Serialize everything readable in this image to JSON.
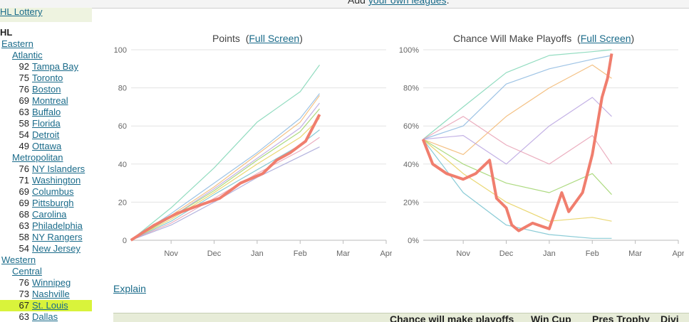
{
  "header": {
    "prefix": "Add",
    "link": "your own leagues",
    "suffix": "."
  },
  "sidebar": {
    "lottery": "HL Lottery",
    "league": "HL",
    "conferences": [
      {
        "name": "Eastern",
        "divisions": [
          {
            "name": "Atlantic",
            "teams": [
              {
                "pts": "92",
                "name": "Tampa Bay"
              },
              {
                "pts": "75",
                "name": "Toronto"
              },
              {
                "pts": "76",
                "name": "Boston"
              },
              {
                "pts": "69",
                "name": "Montreal"
              },
              {
                "pts": "63",
                "name": "Buffalo"
              },
              {
                "pts": "58",
                "name": "Florida"
              },
              {
                "pts": "54",
                "name": "Detroit"
              },
              {
                "pts": "49",
                "name": "Ottawa"
              }
            ]
          },
          {
            "name": "Metropolitan",
            "teams": [
              {
                "pts": "76",
                "name": "NY Islanders"
              },
              {
                "pts": "71",
                "name": "Washington"
              },
              {
                "pts": "69",
                "name": "Columbus"
              },
              {
                "pts": "69",
                "name": "Pittsburgh"
              },
              {
                "pts": "68",
                "name": "Carolina"
              },
              {
                "pts": "63",
                "name": "Philadelphia"
              },
              {
                "pts": "58",
                "name": "NY Rangers"
              },
              {
                "pts": "54",
                "name": "New Jersey"
              }
            ]
          }
        ]
      },
      {
        "name": "Western",
        "divisions": [
          {
            "name": "Central",
            "teams": [
              {
                "pts": "76",
                "name": "Winnipeg"
              },
              {
                "pts": "73",
                "name": "Nashville"
              },
              {
                "pts": "67",
                "name": "St. Louis"
              },
              {
                "pts": "63",
                "name": "Dallas"
              }
            ]
          }
        ]
      }
    ],
    "highlighted_team": "St. Louis"
  },
  "charts": {
    "points": {
      "title": "Points",
      "link": "Full Screen"
    },
    "playoffs": {
      "title": "Chance Will Make Playoffs",
      "link": "Full Screen"
    }
  },
  "explain": "Explain",
  "table_header": [
    "Chance will make playoffs",
    "Win Cup",
    "Pres Trophy",
    "Divi"
  ],
  "colors": {
    "highlight_line": "#f07e6e",
    "link": "#1a6b8a",
    "selected_row": "#d9f33b"
  },
  "chart_data": [
    {
      "type": "line",
      "title": "Points",
      "xlabel": "",
      "ylabel": "",
      "x_ticks": [
        "Nov",
        "Dec",
        "Jan",
        "Feb",
        "Mar",
        "Apr"
      ],
      "y_ticks": [
        "0",
        "20",
        "40",
        "60",
        "80",
        "100"
      ],
      "ylim": [
        0,
        100
      ],
      "grid": true,
      "series": [
        {
          "highlight": true,
          "x": [
            "Oct 3",
            "Oct 20",
            "Nov 5",
            "Nov 20",
            "Dec 5",
            "Dec 20",
            "Jan 5",
            "Jan 15",
            "Jan 25",
            "Feb 5",
            "Feb 15"
          ],
          "values": [
            0,
            8,
            14,
            18,
            22,
            30,
            35,
            42,
            46,
            52,
            66
          ]
        },
        {
          "x": [
            "Oct 3",
            "Nov 1",
            "Dec 1",
            "Jan 1",
            "Feb 1",
            "Feb 15"
          ],
          "values": [
            0,
            17,
            38,
            62,
            78,
            92
          ]
        },
        {
          "x": [
            "Oct 3",
            "Nov 1",
            "Dec 1",
            "Jan 1",
            "Feb 1",
            "Feb 15"
          ],
          "values": [
            0,
            14,
            30,
            46,
            64,
            77
          ]
        },
        {
          "x": [
            "Oct 3",
            "Nov 1",
            "Dec 1",
            "Jan 1",
            "Feb 1",
            "Feb 15"
          ],
          "values": [
            0,
            13,
            28,
            45,
            62,
            76
          ]
        },
        {
          "x": [
            "Oct 3",
            "Nov 1",
            "Dec 1",
            "Jan 1",
            "Feb 1",
            "Feb 15"
          ],
          "values": [
            0,
            12,
            27,
            43,
            59,
            72
          ]
        },
        {
          "x": [
            "Oct 3",
            "Nov 1",
            "Dec 1",
            "Jan 1",
            "Feb 1",
            "Feb 15"
          ],
          "values": [
            0,
            12,
            26,
            42,
            57,
            69
          ]
        },
        {
          "x": [
            "Oct 3",
            "Nov 1",
            "Dec 1",
            "Jan 1",
            "Feb 1",
            "Feb 15"
          ],
          "values": [
            0,
            11,
            25,
            40,
            54,
            64
          ]
        },
        {
          "x": [
            "Oct 3",
            "Nov 1",
            "Dec 1",
            "Jan 1",
            "Feb 1",
            "Feb 15"
          ],
          "values": [
            0,
            10,
            24,
            37,
            50,
            58
          ]
        },
        {
          "x": [
            "Oct 3",
            "Nov 1",
            "Dec 1",
            "Jan 1",
            "Feb 1",
            "Feb 15"
          ],
          "values": [
            0,
            9,
            22,
            35,
            47,
            54
          ]
        },
        {
          "x": [
            "Oct 3",
            "Nov 1",
            "Dec 1",
            "Jan 1",
            "Feb 1",
            "Feb 15"
          ],
          "values": [
            0,
            8,
            20,
            33,
            44,
            49
          ]
        }
      ]
    },
    {
      "type": "line",
      "title": "Chance Will Make Playoffs",
      "xlabel": "",
      "ylabel": "",
      "x_ticks": [
        "Nov",
        "Dec",
        "Jan",
        "Feb",
        "Mar",
        "Apr"
      ],
      "y_ticks": [
        "0%",
        "20%",
        "40%",
        "60%",
        "80%",
        "100%"
      ],
      "ylim": [
        0,
        100
      ],
      "grid": true,
      "series": [
        {
          "highlight": true,
          "x": [
            "Oct 3",
            "Oct 10",
            "Oct 20",
            "Nov 1",
            "Nov 10",
            "Nov 20",
            "Nov 25",
            "Dec 1",
            "Dec 5",
            "Dec 10",
            "Dec 20",
            "Jan 1",
            "Jan 10",
            "Jan 15",
            "Jan 25",
            "Feb 1",
            "Feb 8",
            "Feb 12",
            "Feb 15"
          ],
          "values": [
            53,
            40,
            35,
            32,
            35,
            42,
            22,
            17,
            8,
            5,
            9,
            6,
            25,
            15,
            25,
            45,
            75,
            85,
            98
          ]
        },
        {
          "x": [
            "Oct 3",
            "Nov 1",
            "Dec 1",
            "Jan 1",
            "Feb 1",
            "Feb 15"
          ],
          "values": [
            53,
            70,
            88,
            97,
            99,
            100
          ]
        },
        {
          "x": [
            "Oct 3",
            "Nov 1",
            "Dec 1",
            "Jan 1",
            "Feb 1",
            "Feb 15"
          ],
          "values": [
            53,
            60,
            82,
            90,
            95,
            97
          ]
        },
        {
          "x": [
            "Oct 3",
            "Nov 1",
            "Dec 1",
            "Jan 1",
            "Feb 1",
            "Feb 15"
          ],
          "values": [
            53,
            45,
            65,
            80,
            92,
            85
          ]
        },
        {
          "x": [
            "Oct 3",
            "Nov 1",
            "Dec 1",
            "Jan 1",
            "Feb 1",
            "Feb 15"
          ],
          "values": [
            53,
            55,
            40,
            60,
            75,
            65
          ]
        },
        {
          "x": [
            "Oct 3",
            "Nov 1",
            "Dec 1",
            "Jan 1",
            "Feb 1",
            "Feb 15"
          ],
          "values": [
            53,
            40,
            30,
            25,
            35,
            24
          ]
        },
        {
          "x": [
            "Oct 3",
            "Nov 1",
            "Dec 1",
            "Jan 1",
            "Feb 1",
            "Feb 15"
          ],
          "values": [
            53,
            35,
            20,
            10,
            12,
            10
          ]
        },
        {
          "x": [
            "Oct 3",
            "Nov 1",
            "Dec 1",
            "Jan 1",
            "Feb 1",
            "Feb 15"
          ],
          "values": [
            53,
            25,
            8,
            3,
            1,
            1
          ]
        },
        {
          "x": [
            "Oct 3",
            "Nov 1",
            "Dec 1",
            "Jan 1",
            "Feb 1",
            "Feb 15"
          ],
          "values": [
            53,
            65,
            50,
            40,
            55,
            40
          ]
        }
      ]
    }
  ]
}
